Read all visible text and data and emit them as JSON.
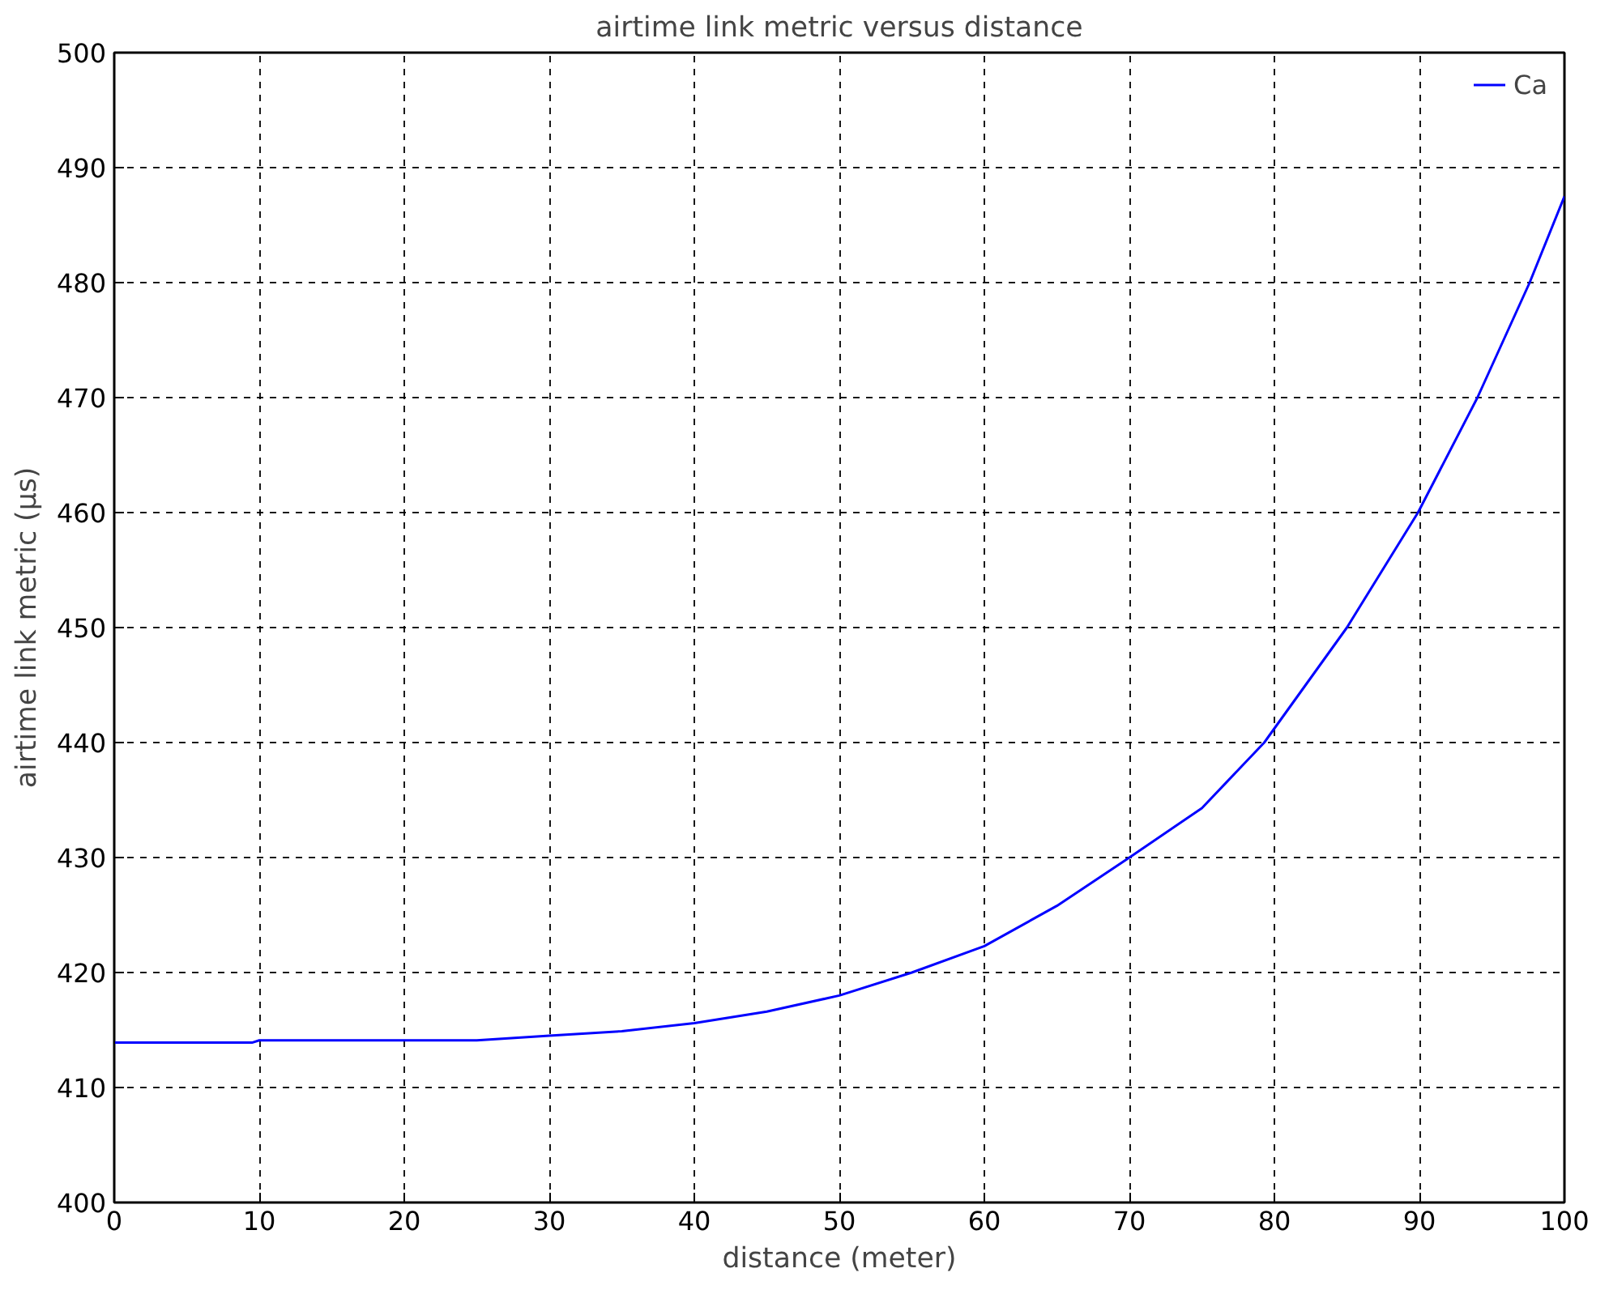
{
  "chart_data": {
    "type": "line",
    "title": "airtime link metric versus distance",
    "xlabel": "distance (meter)",
    "ylabel": "airtime link metric (μs)",
    "x": [
      0,
      9.5,
      10,
      25,
      30,
      35,
      40,
      45,
      50,
      55,
      60,
      65,
      70,
      75,
      79.3,
      85,
      89.9,
      94,
      97.6,
      100
    ],
    "series": [
      {
        "name": "Ca",
        "color": "#0000ff",
        "values": [
          413.9,
          413.9,
          414.1,
          414.1,
          414.5,
          414.9,
          415.6,
          416.6,
          418.0,
          420.0,
          422.3,
          425.8,
          430.0,
          434.3,
          440,
          450,
          460,
          470,
          480,
          487.5
        ]
      }
    ],
    "xlim": [
      0,
      100
    ],
    "xticks": [
      0,
      10,
      20,
      30,
      40,
      50,
      60,
      70,
      80,
      90,
      100
    ],
    "ylim": [
      400,
      500
    ],
    "yticks": [
      400,
      410,
      420,
      430,
      440,
      450,
      460,
      470,
      480,
      490,
      500
    ],
    "grid": true,
    "legend": "top right",
    "line_style": "solid"
  }
}
